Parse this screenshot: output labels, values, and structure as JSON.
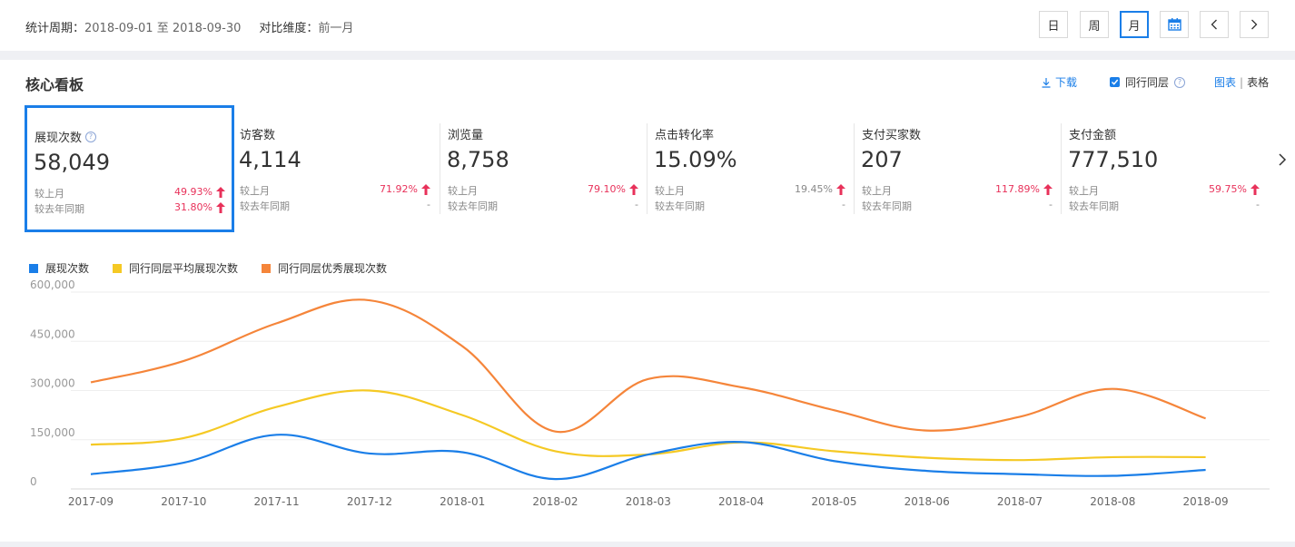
{
  "header": {
    "period_label": "统计周期：",
    "period_value": "2018-09-01 至 2018-09-30",
    "compare_label": "对比维度：",
    "compare_value": "前一月",
    "buttons": [
      "日",
      "周",
      "月"
    ],
    "active_button": "月"
  },
  "panel": {
    "title": "核心看板",
    "download": "下载",
    "peer_label": "同行同层",
    "peer_checked": true,
    "view_chart": "图表",
    "view_table": "表格"
  },
  "cards": [
    {
      "title": "展现次数",
      "help": true,
      "value": "58,049",
      "mom_label": "较上月",
      "mom": "49.93%",
      "mom_up": true,
      "yoy_label": "较去年同期",
      "yoy": "31.80%",
      "yoy_up": true
    },
    {
      "title": "访客数",
      "value": "4,114",
      "mom_label": "较上月",
      "mom": "71.92%",
      "mom_up": true,
      "yoy_label": "较去年同期",
      "yoy": "-"
    },
    {
      "title": "浏览量",
      "value": "8,758",
      "mom_label": "较上月",
      "mom": "79.10%",
      "mom_up": true,
      "yoy_label": "较去年同期",
      "yoy": "-"
    },
    {
      "title": "点击转化率",
      "value": "15.09%",
      "mom_label": "较上月",
      "mom": "19.45%",
      "mom_up": true,
      "mom_gray": true,
      "yoy_label": "较去年同期",
      "yoy": "-"
    },
    {
      "title": "支付买家数",
      "value": "207",
      "mom_label": "较上月",
      "mom": "117.89%",
      "mom_up": true,
      "yoy_label": "较去年同期",
      "yoy": "-"
    },
    {
      "title": "支付金额",
      "value": "777,510",
      "mom_label": "较上月",
      "mom": "59.75%",
      "mom_up": true,
      "yoy_label": "较去年同期",
      "yoy": "-"
    }
  ],
  "colors": {
    "accent": "#1a7ee8",
    "up": "#e8315a",
    "series_blue": "#1a7ee8",
    "series_yellow": "#f5c924",
    "series_orange": "#f5853a"
  },
  "chart_data": {
    "type": "line",
    "x": [
      "2017-09",
      "2017-10",
      "2017-11",
      "2017-12",
      "2018-01",
      "2018-02",
      "2018-03",
      "2018-04",
      "2018-05",
      "2018-06",
      "2018-07",
      "2018-08",
      "2018-09"
    ],
    "y_ticks": [
      "0",
      "150,000",
      "300,000",
      "450,000",
      "600,000"
    ],
    "ylim": [
      0,
      600000
    ],
    "grid": true,
    "legend_position": "top-left",
    "series": [
      {
        "name": "展现次数",
        "color": "#1a7ee8",
        "values": [
          45000,
          80000,
          165000,
          108000,
          112000,
          30000,
          105000,
          143000,
          85000,
          55000,
          45000,
          40000,
          58049
        ]
      },
      {
        "name": "同行同层平均展现次数",
        "color": "#f5c924",
        "values": [
          135000,
          155000,
          250000,
          300000,
          225000,
          115000,
          105000,
          142000,
          115000,
          95000,
          88000,
          97000,
          97000
        ]
      },
      {
        "name": "同行同层优秀展现次数",
        "color": "#f5853a",
        "values": [
          325000,
          390000,
          505000,
          575000,
          435000,
          175000,
          335000,
          310000,
          240000,
          178000,
          220000,
          305000,
          215000
        ]
      }
    ]
  }
}
